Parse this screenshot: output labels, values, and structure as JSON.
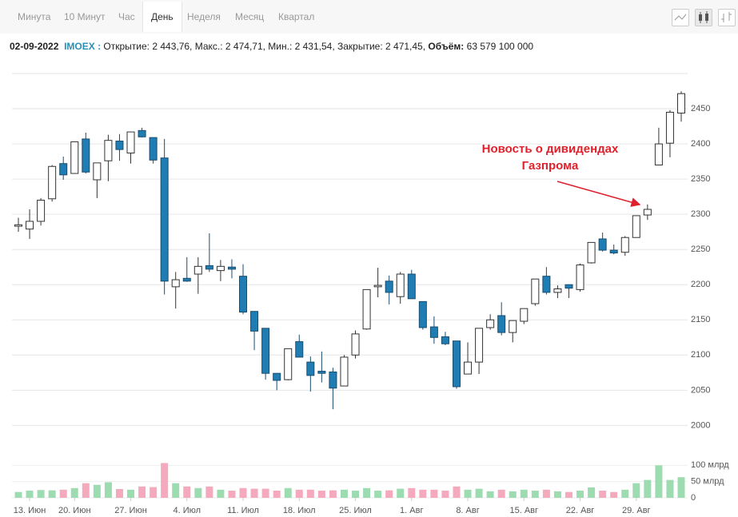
{
  "tabs": [
    "Минута",
    "10 Минут",
    "Час",
    "День",
    "Неделя",
    "Месяц",
    "Квартал"
  ],
  "info": {
    "date": "02-09-2022",
    "ticker": "IMOEX :",
    "prices": "Открытие: 2 443,76, Макс.: 2 474,71, Мин.: 2 431,54, Закрытие: 2 471,45,",
    "volume_label": "Объём:",
    "volume": "63 579 100 000"
  },
  "chart_data": {
    "type": "candlestick",
    "categories": [
      null,
      "13. Июн",
      null,
      null,
      null,
      "20. Июн",
      null,
      null,
      null,
      null,
      "27. Июн",
      null,
      null,
      null,
      null,
      "4. Июл",
      null,
      null,
      null,
      null,
      "11. Июл",
      null,
      null,
      null,
      null,
      "18. Июл",
      null,
      null,
      null,
      null,
      "25. Июл",
      null,
      null,
      null,
      null,
      "1. Авг",
      null,
      null,
      null,
      null,
      "8. Авг",
      null,
      null,
      null,
      null,
      "15. Авг",
      null,
      null,
      null,
      null,
      "22. Авг",
      null,
      null,
      null,
      null,
      "29. Авг",
      null,
      null,
      null,
      null
    ],
    "open": [
      2283,
      2279,
      2290,
      2322,
      2372,
      2358,
      2407,
      2349,
      2376,
      2404,
      2387,
      2419,
      2409,
      2380,
      2197,
      2209,
      2215,
      2227,
      2220,
      2225,
      2212,
      2162,
      2138,
      2074,
      2065,
      2119,
      2090,
      2077,
      2076,
      2056,
      2100,
      2137,
      2197,
      2205,
      2183,
      2215,
      2176,
      2140,
      2126,
      2120,
      2073,
      2090,
      2139,
      2156,
      2132,
      2148,
      2173,
      2212,
      2189,
      2200,
      2193,
      2231,
      2265,
      2249,
      2246,
      2267,
      2299,
      2370,
      2401,
      2443.76
    ],
    "high": [
      2295,
      2307,
      2323,
      2370,
      2382,
      2403,
      2416,
      2373,
      2413,
      2414,
      2417,
      2423,
      2409,
      2407,
      2218,
      2239,
      2239,
      2273,
      2235,
      2236,
      2229,
      2162,
      2138,
      2074,
      2109,
      2129,
      2098,
      2105,
      2082,
      2100,
      2135,
      2193,
      2224,
      2213,
      2218,
      2221,
      2176,
      2155,
      2133,
      2120,
      2118,
      2138,
      2158,
      2175,
      2149,
      2166,
      2208,
      2225,
      2199,
      2200,
      2230,
      2260,
      2274,
      2257,
      2269,
      2298,
      2314,
      2423,
      2448,
      2474.71
    ],
    "low": [
      2275,
      2265,
      2284,
      2318,
      2349,
      2358,
      2358,
      2323,
      2347,
      2376,
      2372,
      2409,
      2372,
      2186,
      2166,
      2204,
      2187,
      2218,
      2205,
      2209,
      2158,
      2107,
      2065,
      2050,
      2064,
      2097,
      2048,
      2061,
      2023,
      2056,
      2095,
      2136,
      2182,
      2172,
      2173,
      2180,
      2136,
      2116,
      2114,
      2052,
      2073,
      2073,
      2136,
      2128,
      2118,
      2144,
      2170,
      2186,
      2181,
      2181,
      2190,
      2230,
      2247,
      2243,
      2241,
      2267,
      2292,
      2370,
      2381,
      2431.54
    ],
    "close": [
      2285,
      2290,
      2320,
      2368,
      2356,
      2403,
      2360,
      2373,
      2405,
      2392,
      2417,
      2410,
      2377,
      2205,
      2207,
      2205,
      2226,
      2222,
      2226,
      2222,
      2161,
      2134,
      2074,
      2064,
      2109,
      2097,
      2071,
      2074,
      2053,
      2097,
      2130,
      2193,
      2199,
      2189,
      2215,
      2180,
      2139,
      2125,
      2116,
      2055,
      2090,
      2138,
      2150,
      2132,
      2149,
      2166,
      2208,
      2189,
      2194,
      2195,
      2228,
      2260,
      2249,
      2245,
      2267,
      2298,
      2307,
      2400,
      2445,
      2471.45
    ],
    "up_color": "#ffffff",
    "down_color": "#1f7db3",
    "ylim": [
      1980,
      2500
    ],
    "yticks": [
      2000,
      2050,
      2100,
      2150,
      2200,
      2250,
      2300,
      2350,
      2400,
      2450
    ],
    "grid": true,
    "volume": {
      "values": [
        18,
        22,
        24,
        23,
        25,
        30,
        45,
        40,
        48,
        27,
        25,
        35,
        33,
        107,
        45,
        35,
        30,
        35,
        25,
        22,
        30,
        28,
        28,
        22,
        30,
        25,
        25,
        22,
        23,
        25,
        22,
        30,
        22,
        23,
        28,
        30,
        25,
        25,
        22,
        35,
        25,
        28,
        20,
        25,
        20,
        25,
        22,
        25,
        20,
        18,
        22,
        32,
        22,
        18,
        25,
        45,
        55,
        100,
        55,
        63.5791
      ],
      "up_color": "#9ddcb0",
      "down_color": "#f4a9bd",
      "ylim": [
        0,
        150
      ],
      "yticks": [
        0,
        {
          "value": 50,
          "label": "50 млрд"
        },
        {
          "value": 100,
          "label": "100 млрд"
        }
      ]
    },
    "annotation": [
      "Новость о дивидендах",
      "Газпрома"
    ]
  }
}
